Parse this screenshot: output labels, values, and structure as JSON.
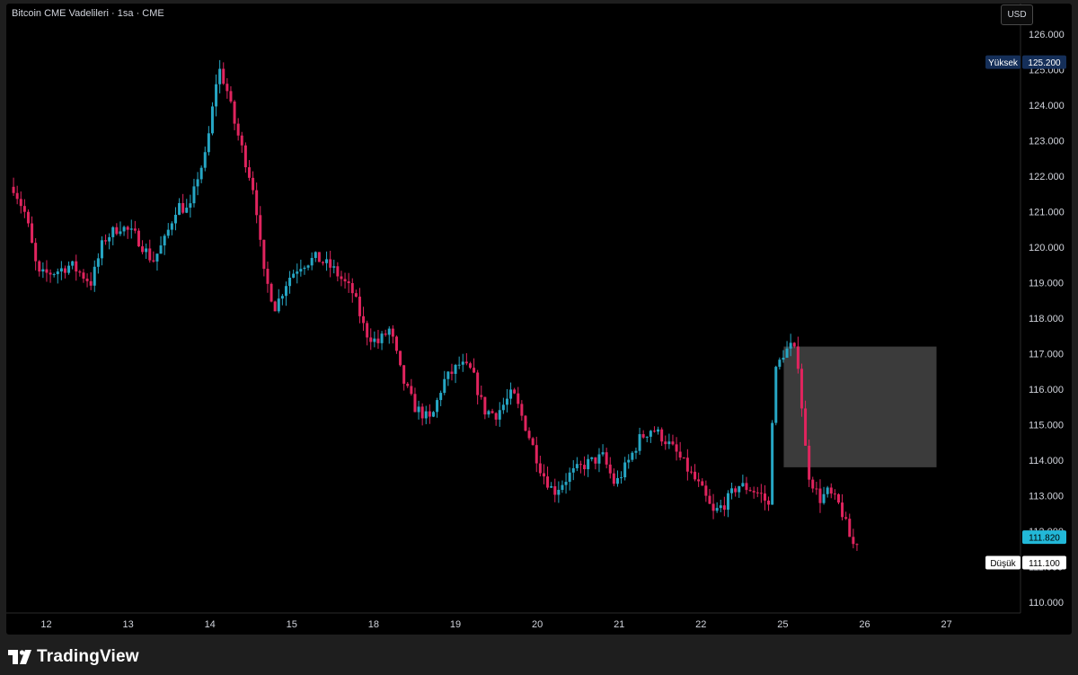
{
  "header": {
    "title": "Bitcoin CME Vadelileri · 1sa · CME",
    "currency": "USD"
  },
  "brand": {
    "name": "TradingView",
    "icon": "tradingview-logo-icon"
  },
  "colors": {
    "up": "#26a6c4",
    "down": "#e0245e",
    "background": "#000000",
    "zone": "#3b3b3b",
    "high_tag": "#152f59",
    "current_tag": "#22b8d8"
  },
  "chart_data": {
    "type": "candlestick",
    "x_ticks": [
      "12",
      "13",
      "14",
      "15",
      "18",
      "19",
      "20",
      "21",
      "22",
      "25",
      "26",
      "27"
    ],
    "y_ticks": [
      "110.000",
      "111.000",
      "112.000",
      "113.000",
      "114.000",
      "115.000",
      "116.000",
      "117.000",
      "118.000",
      "119.000",
      "120.000",
      "121.000",
      "122.000",
      "123.000",
      "124.000",
      "125.000",
      "126.000"
    ],
    "ylim": [
      109.6,
      126.6
    ],
    "grid": false,
    "high": {
      "label": "Yüksek",
      "value": "125.200"
    },
    "low": {
      "label": "Düşük",
      "value": "111.100"
    },
    "last_price": "111.820",
    "zone": {
      "price_top": 117.2,
      "price_bottom": 113.8,
      "from_day": 25.0,
      "to_day": 26.9
    },
    "price_path": [
      [
        11.6,
        121.7
      ],
      [
        11.75,
        120.9
      ],
      [
        11.9,
        119.2
      ],
      [
        12.1,
        119.3
      ],
      [
        12.3,
        119.5
      ],
      [
        12.55,
        119.0
      ],
      [
        12.7,
        120.2
      ],
      [
        12.9,
        120.6
      ],
      [
        13.1,
        120.3
      ],
      [
        13.3,
        119.6
      ],
      [
        13.45,
        120.2
      ],
      [
        13.6,
        121.2
      ],
      [
        13.75,
        121.0
      ],
      [
        13.85,
        122.0
      ],
      [
        13.95,
        122.6
      ],
      [
        14.05,
        124.2
      ],
      [
        14.1,
        125.1
      ],
      [
        14.2,
        124.5
      ],
      [
        14.3,
        123.5
      ],
      [
        14.45,
        122.3
      ],
      [
        14.55,
        121.5
      ],
      [
        14.65,
        119.3
      ],
      [
        14.8,
        118.3
      ],
      [
        14.95,
        119.1
      ],
      [
        15.1,
        119.5
      ],
      [
        15.3,
        119.7
      ],
      [
        15.5,
        119.4
      ],
      [
        15.75,
        118.7
      ],
      [
        15.9,
        117.6
      ],
      [
        16.05,
        117.3
      ],
      [
        16.2,
        117.7
      ],
      [
        16.35,
        116.3
      ],
      [
        16.5,
        115.5
      ],
      [
        16.7,
        115.1
      ],
      [
        16.85,
        116.2
      ],
      [
        17.05,
        116.7
      ],
      [
        17.2,
        116.5
      ],
      [
        17.35,
        115.4
      ],
      [
        17.5,
        115.3
      ],
      [
        17.7,
        115.9
      ],
      [
        17.85,
        115.0
      ],
      [
        18.05,
        113.7
      ],
      [
        18.2,
        113.1
      ],
      [
        18.4,
        113.6
      ],
      [
        18.6,
        113.9
      ],
      [
        18.8,
        114.1
      ],
      [
        18.95,
        113.3
      ],
      [
        19.1,
        113.9
      ],
      [
        19.25,
        114.6
      ],
      [
        19.4,
        114.9
      ],
      [
        19.55,
        114.6
      ],
      [
        19.7,
        114.2
      ],
      [
        19.85,
        113.7
      ],
      [
        20.0,
        113.2
      ],
      [
        20.15,
        112.5
      ],
      [
        20.3,
        112.8
      ],
      [
        20.45,
        113.3
      ],
      [
        20.6,
        113.2
      ],
      [
        20.75,
        113.0
      ],
      [
        20.85,
        112.6
      ],
      [
        20.88,
        116.3
      ],
      [
        21.0,
        117.0
      ],
      [
        21.1,
        117.2
      ],
      [
        21.18,
        116.9
      ],
      [
        21.3,
        113.7
      ],
      [
        21.45,
        112.9
      ],
      [
        21.55,
        113.1
      ],
      [
        21.7,
        112.7
      ],
      [
        21.85,
        111.6
      ],
      [
        21.95,
        111.82
      ]
    ]
  }
}
